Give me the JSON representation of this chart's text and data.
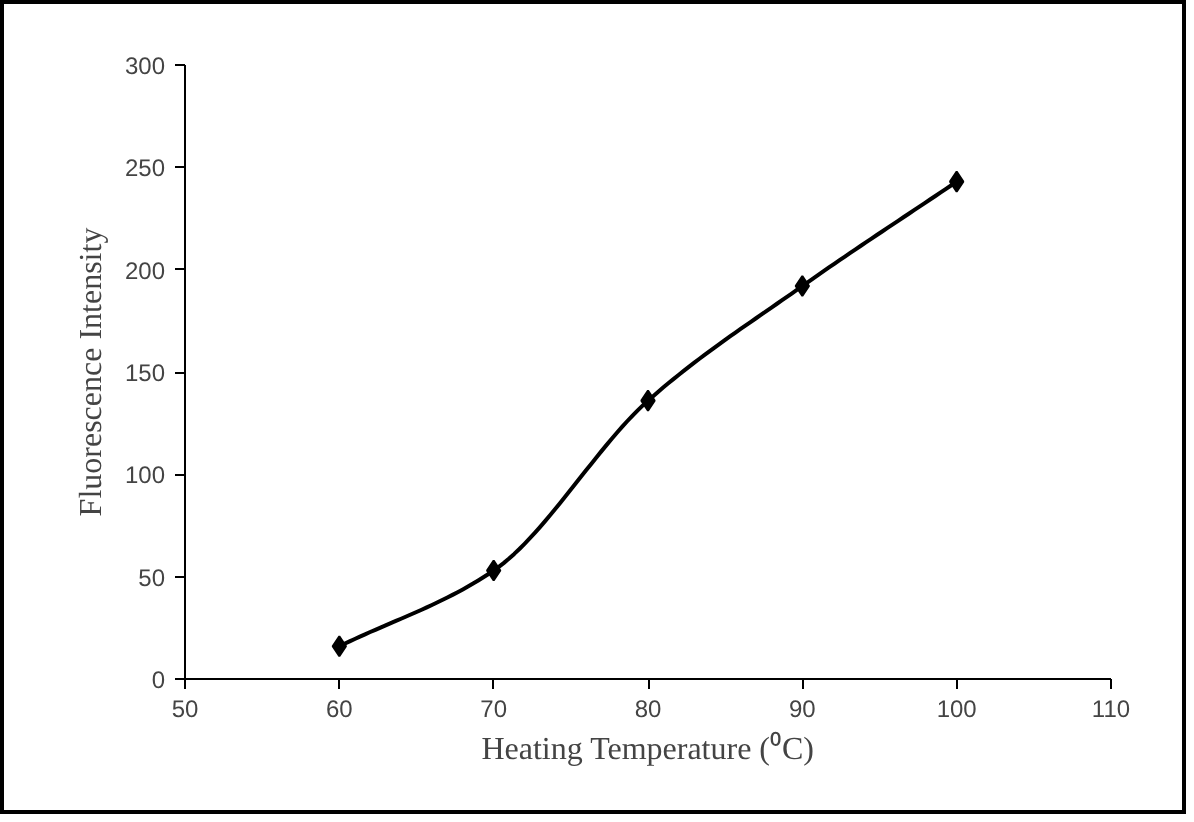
{
  "chart_data": {
    "type": "line",
    "xlabel": "Heating Temperature (⁰C)",
    "ylabel": "Fluorescence Intensity",
    "x": [
      60,
      70,
      80,
      90,
      100
    ],
    "series": [
      {
        "color": "#000000",
        "values": [
          16,
          53,
          136,
          192,
          243
        ]
      }
    ],
    "xlim": [
      50,
      110
    ],
    "xticks": [
      50,
      60,
      70,
      80,
      90,
      100,
      110
    ],
    "ylim": [
      0,
      300
    ],
    "yticks": [
      0,
      50,
      100,
      150,
      200,
      250,
      300
    ],
    "grid": false,
    "marker": "diamond",
    "line_style": "solid"
  }
}
